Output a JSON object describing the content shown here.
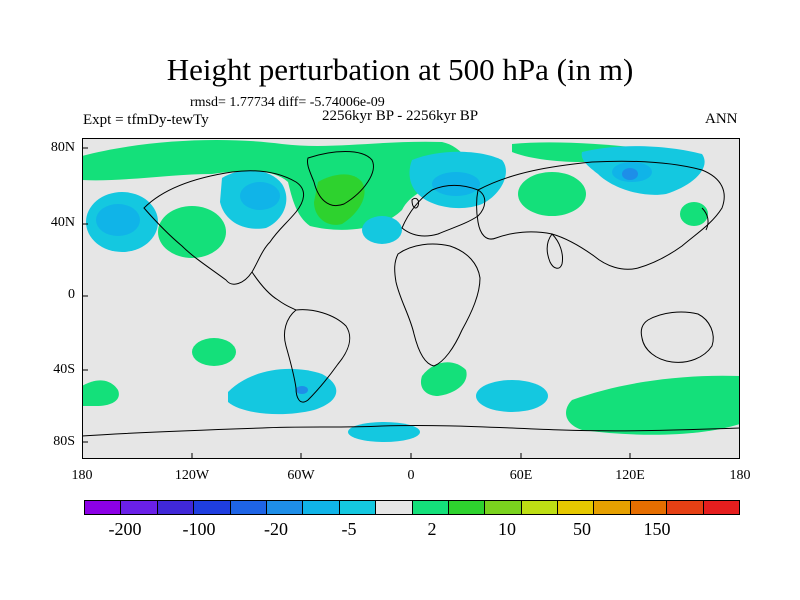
{
  "figure": {
    "title": "Height perturbation at 500 hPa (in m)",
    "stats": "rmsd= 1.77734 diff= -5.74006e-09",
    "period": "2256kyr BP - 2256kyr BP",
    "experiment": "Expt = tfmDy-tewTy",
    "season": "ANN"
  },
  "axes": {
    "lat_ticks": [
      "80N",
      "40N",
      "0",
      "40S",
      "80S"
    ],
    "lon_ticks": [
      "180",
      "120W",
      "60W",
      "0",
      "60E",
      "120E",
      "180"
    ]
  },
  "colorbar": {
    "colors": [
      "#8c00e6",
      "#6a20e8",
      "#4028d8",
      "#1f3ee0",
      "#1e64e6",
      "#1e8ee8",
      "#10b4e8",
      "#14c8e0",
      "#e6e6e6",
      "#14e07a",
      "#2ed22e",
      "#7ad21e",
      "#bede14",
      "#e6c800",
      "#e6a000",
      "#e66e00",
      "#e64014",
      "#e61e1e"
    ],
    "labels": [
      "-200",
      "-100",
      "-20",
      "-5",
      "2",
      "10",
      "50",
      "150"
    ]
  },
  "map_colors": {
    "ocean_bg": "#e6e6e6",
    "positive": "#14e07a",
    "positive_strong": "#2ed22e",
    "negative": "#14c8e0",
    "negative_strong": "#10b4e8",
    "negative_core": "#1e8ee8"
  }
}
